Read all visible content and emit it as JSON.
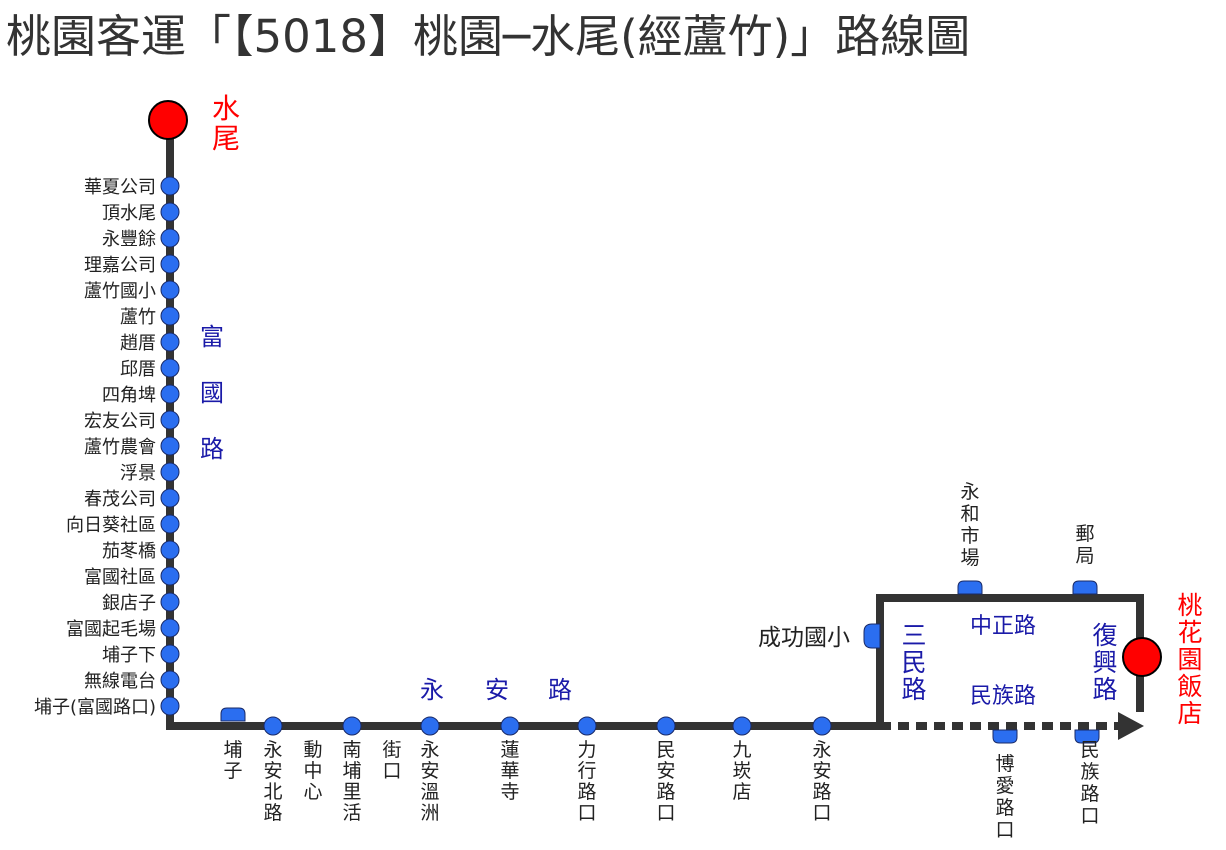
{
  "title": "桃園客運「【5018】桃園─水尾(經蘆竹)」路線圖",
  "colors": {
    "line": "#333333",
    "stop": "#2b6ef0",
    "terminal": "#ff0000",
    "road_label": "#1a1aa8",
    "terminal_label": "#ff0000"
  },
  "terminals": {
    "start": "水尾",
    "end": "桃花園飯店"
  },
  "roads": {
    "fuguo": "富國路",
    "yongan": "永安路",
    "sanmin": "三民路",
    "zhongzheng": "中正路",
    "minzu": "民族路",
    "fuxing": "復興路"
  },
  "stops_fuguo_road": [
    "華夏公司",
    "頂水尾",
    "永豐餘",
    "理嘉公司",
    "蘆竹國小",
    "蘆竹",
    "趙厝",
    "邱厝",
    "四角埤",
    "宏友公司",
    "蘆竹農會",
    "浮景",
    "春茂公司",
    "向日葵社區",
    "茄苳橋",
    "富國社區",
    "銀店子",
    "富國起毛場",
    "埔子下",
    "無線電台",
    "埔子(富國路口)"
  ],
  "stops_yongan_road": [
    "埔子",
    "永安北路",
    "動中心",
    "南埔里活",
    "街口",
    "永安溫洲",
    "蓮華寺",
    "力行路口",
    "民安路口",
    "九崁店",
    "永安路口"
  ],
  "stop_chenggong": "成功國小",
  "stops_zhongzheng_road": [
    "永和市場",
    "郵局"
  ],
  "stops_minzu_road": [
    "博愛路口",
    "民族路口"
  ]
}
